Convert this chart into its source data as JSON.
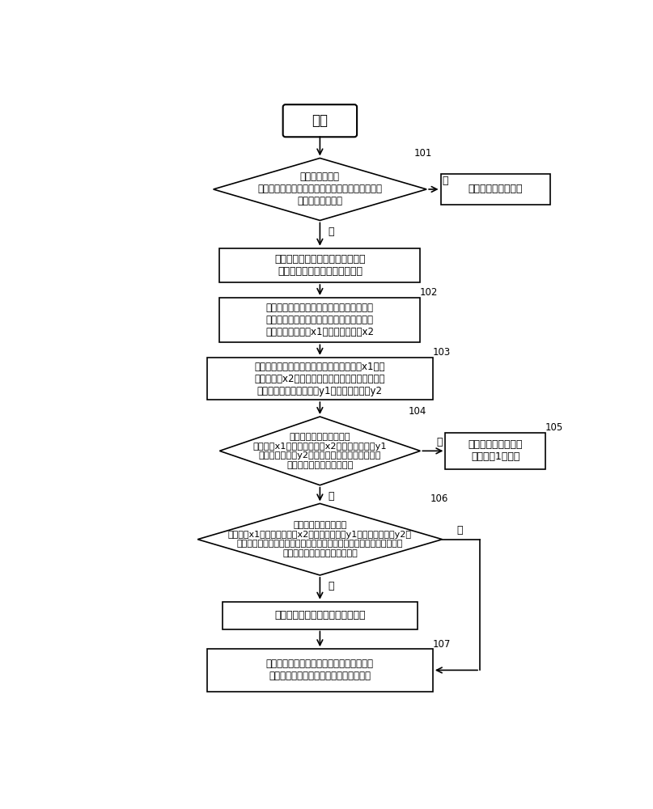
{
  "bg_color": "#ffffff",
  "start_text": "开始",
  "d101_text": "识别装置根据接\n收到的图像路径，获取对应的图像，判断是否能够\n获取到对应的图像",
  "d101_label": "101",
  "error_text": "显示错误信息，结束",
  "step_img_text": "获取图像的宽作为最大横坐标值，\n获取图像的高作为最大纵坐标值",
  "d102_text": "识别装置根据图像中的像素点的颜色、最大\n横坐标值和最大纵坐标值，获取图像中的段\n码的第一横坐标值x1和第二横坐标值x2",
  "d102_label": "102",
  "d103_text": "识别装置根据图像中的段码的第一横坐标值x1、第\n二横坐标值x2和图像中的像素点的颜色，获取图像\n中的段码的第一纵坐标值y1和第二纵坐标值y2",
  "d103_label": "103",
  "d104_text": "识别装置根据段码的第一\n横坐标值x1、第二横坐标值x2、第一纵坐标值y1\n和第二纵坐标值y2，判断段码范围的高度与宽度\n的比例是否大于第三预设值",
  "d104_label": "104",
  "d105_text": "识别装置识别该段码\n表示数字1，结束",
  "d105_label": "105",
  "d106_text": "识别装置根据段码的第\n横坐标值x1、第二横坐标值x2、第一纵坐标值y1和第二纵坐标值y2，\n得到各个笔段采样区域的坐标，在笔段采样区域内进行采样，判断笔段\n采样区域对应的笔段是否被显示",
  "d106_label": "106",
  "step_set_text": "将识别装置中对应的笔段标识置位",
  "d107_text": "识别装置根据各个笔段标识，识别该段码表\n示的数字，标识该段码表示的数字，结束",
  "d107_label": "107",
  "yes_text": "是",
  "no_text": "否"
}
